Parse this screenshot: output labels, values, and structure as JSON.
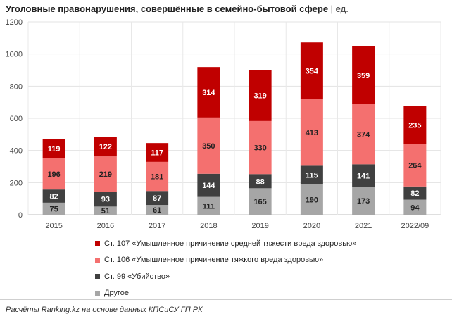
{
  "chart_data": {
    "type": "bar",
    "stacked": true,
    "title": "Уголовные правонарушения, совершённые в семейно-бытовой сфере",
    "unit": "ед.",
    "categories": [
      "2015",
      "2016",
      "2017",
      "2018",
      "2019",
      "2020",
      "2021",
      "2022/09"
    ],
    "ylim": [
      0,
      1200
    ],
    "yticks": [
      0,
      200,
      400,
      600,
      800,
      1000,
      1200
    ],
    "grid": true,
    "legend_position": "bottom",
    "series": [
      {
        "name": "Другое",
        "color": "#a6a6a6",
        "label_color": "#222222",
        "values": [
          75,
          51,
          61,
          111,
          165,
          190,
          173,
          94
        ]
      },
      {
        "name": "Ст. 99 «Убийство»",
        "color": "#404040",
        "label_color": "#ffffff",
        "values": [
          82,
          93,
          87,
          144,
          88,
          115,
          141,
          82
        ]
      },
      {
        "name": "Ст. 106 «Умышленное причинение тяжкого вреда здоровью»",
        "color": "#f4706f",
        "label_color": "#222222",
        "values": [
          196,
          219,
          181,
          350,
          330,
          413,
          374,
          264
        ]
      },
      {
        "name": "Ст. 107 «Умышленное причинение средней тяжести вреда здоровью»",
        "color": "#c00000",
        "label_color": "#ffffff",
        "values": [
          119,
          122,
          117,
          314,
          319,
          354,
          359,
          235
        ]
      }
    ]
  },
  "source": "Расчёты Ranking.kz на основе данных КПСиСУ ГП РК"
}
